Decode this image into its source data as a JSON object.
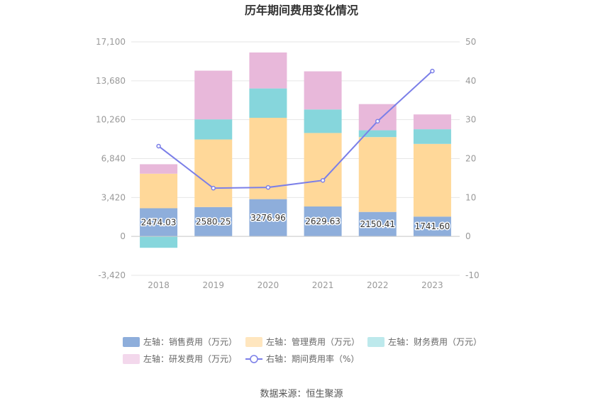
{
  "chart_data": {
    "type": "bar",
    "title": "历年期间费用变化情况",
    "categories": [
      "2018",
      "2019",
      "2020",
      "2021",
      "2022",
      "2023"
    ],
    "stacked": true,
    "left_axis": {
      "ylim": [
        -3420,
        17100
      ],
      "ticks": [
        "17,100",
        "13,680",
        "10,260",
        "6,840",
        "3,420",
        "0",
        "-3,420"
      ],
      "tick_values": [
        17100,
        13680,
        10260,
        6840,
        3420,
        0,
        -3420
      ]
    },
    "right_axis": {
      "ylim": [
        -10,
        50
      ],
      "ticks": [
        "50",
        "40",
        "30",
        "20",
        "10",
        "0",
        "-10"
      ],
      "tick_values": [
        50,
        40,
        30,
        20,
        10,
        0,
        -10
      ]
    },
    "series": [
      {
        "name": "左轴：销售费用（万元）",
        "type": "bar",
        "axis": "left",
        "color": "#8eaedb",
        "values": [
          2474.03,
          2580.25,
          3276.96,
          2629.63,
          2150.41,
          1741.6
        ],
        "labels": [
          "2474.03",
          "2580.25",
          "3276.96",
          "2629.63",
          "2150.41",
          "1741.60"
        ]
      },
      {
        "name": "左轴：管理费用（万元）",
        "type": "bar",
        "axis": "left",
        "color": "#ffd899",
        "values": [
          3040,
          5940,
          7150,
          6460,
          6580,
          6390
        ]
      },
      {
        "name": "左轴：财务费用（万元）",
        "type": "bar",
        "axis": "left",
        "color": "#86d6dc",
        "values": [
          -1000,
          1770,
          2580,
          2070,
          600,
          1290
        ]
      },
      {
        "name": "左轴：研发费用（万元）",
        "type": "bar",
        "axis": "left",
        "color": "#e8b8da",
        "values": [
          830,
          4280,
          3160,
          3350,
          2300,
          1300
        ]
      },
      {
        "name": "右轴：期间费用率（%）",
        "type": "line",
        "axis": "right",
        "color": "#7b7fe8",
        "values": [
          23.2,
          12.4,
          12.6,
          14.4,
          29.6,
          42.5
        ]
      }
    ],
    "legend_position": "bottom",
    "grid": true
  },
  "source_text": "数据来源：恒生聚源"
}
